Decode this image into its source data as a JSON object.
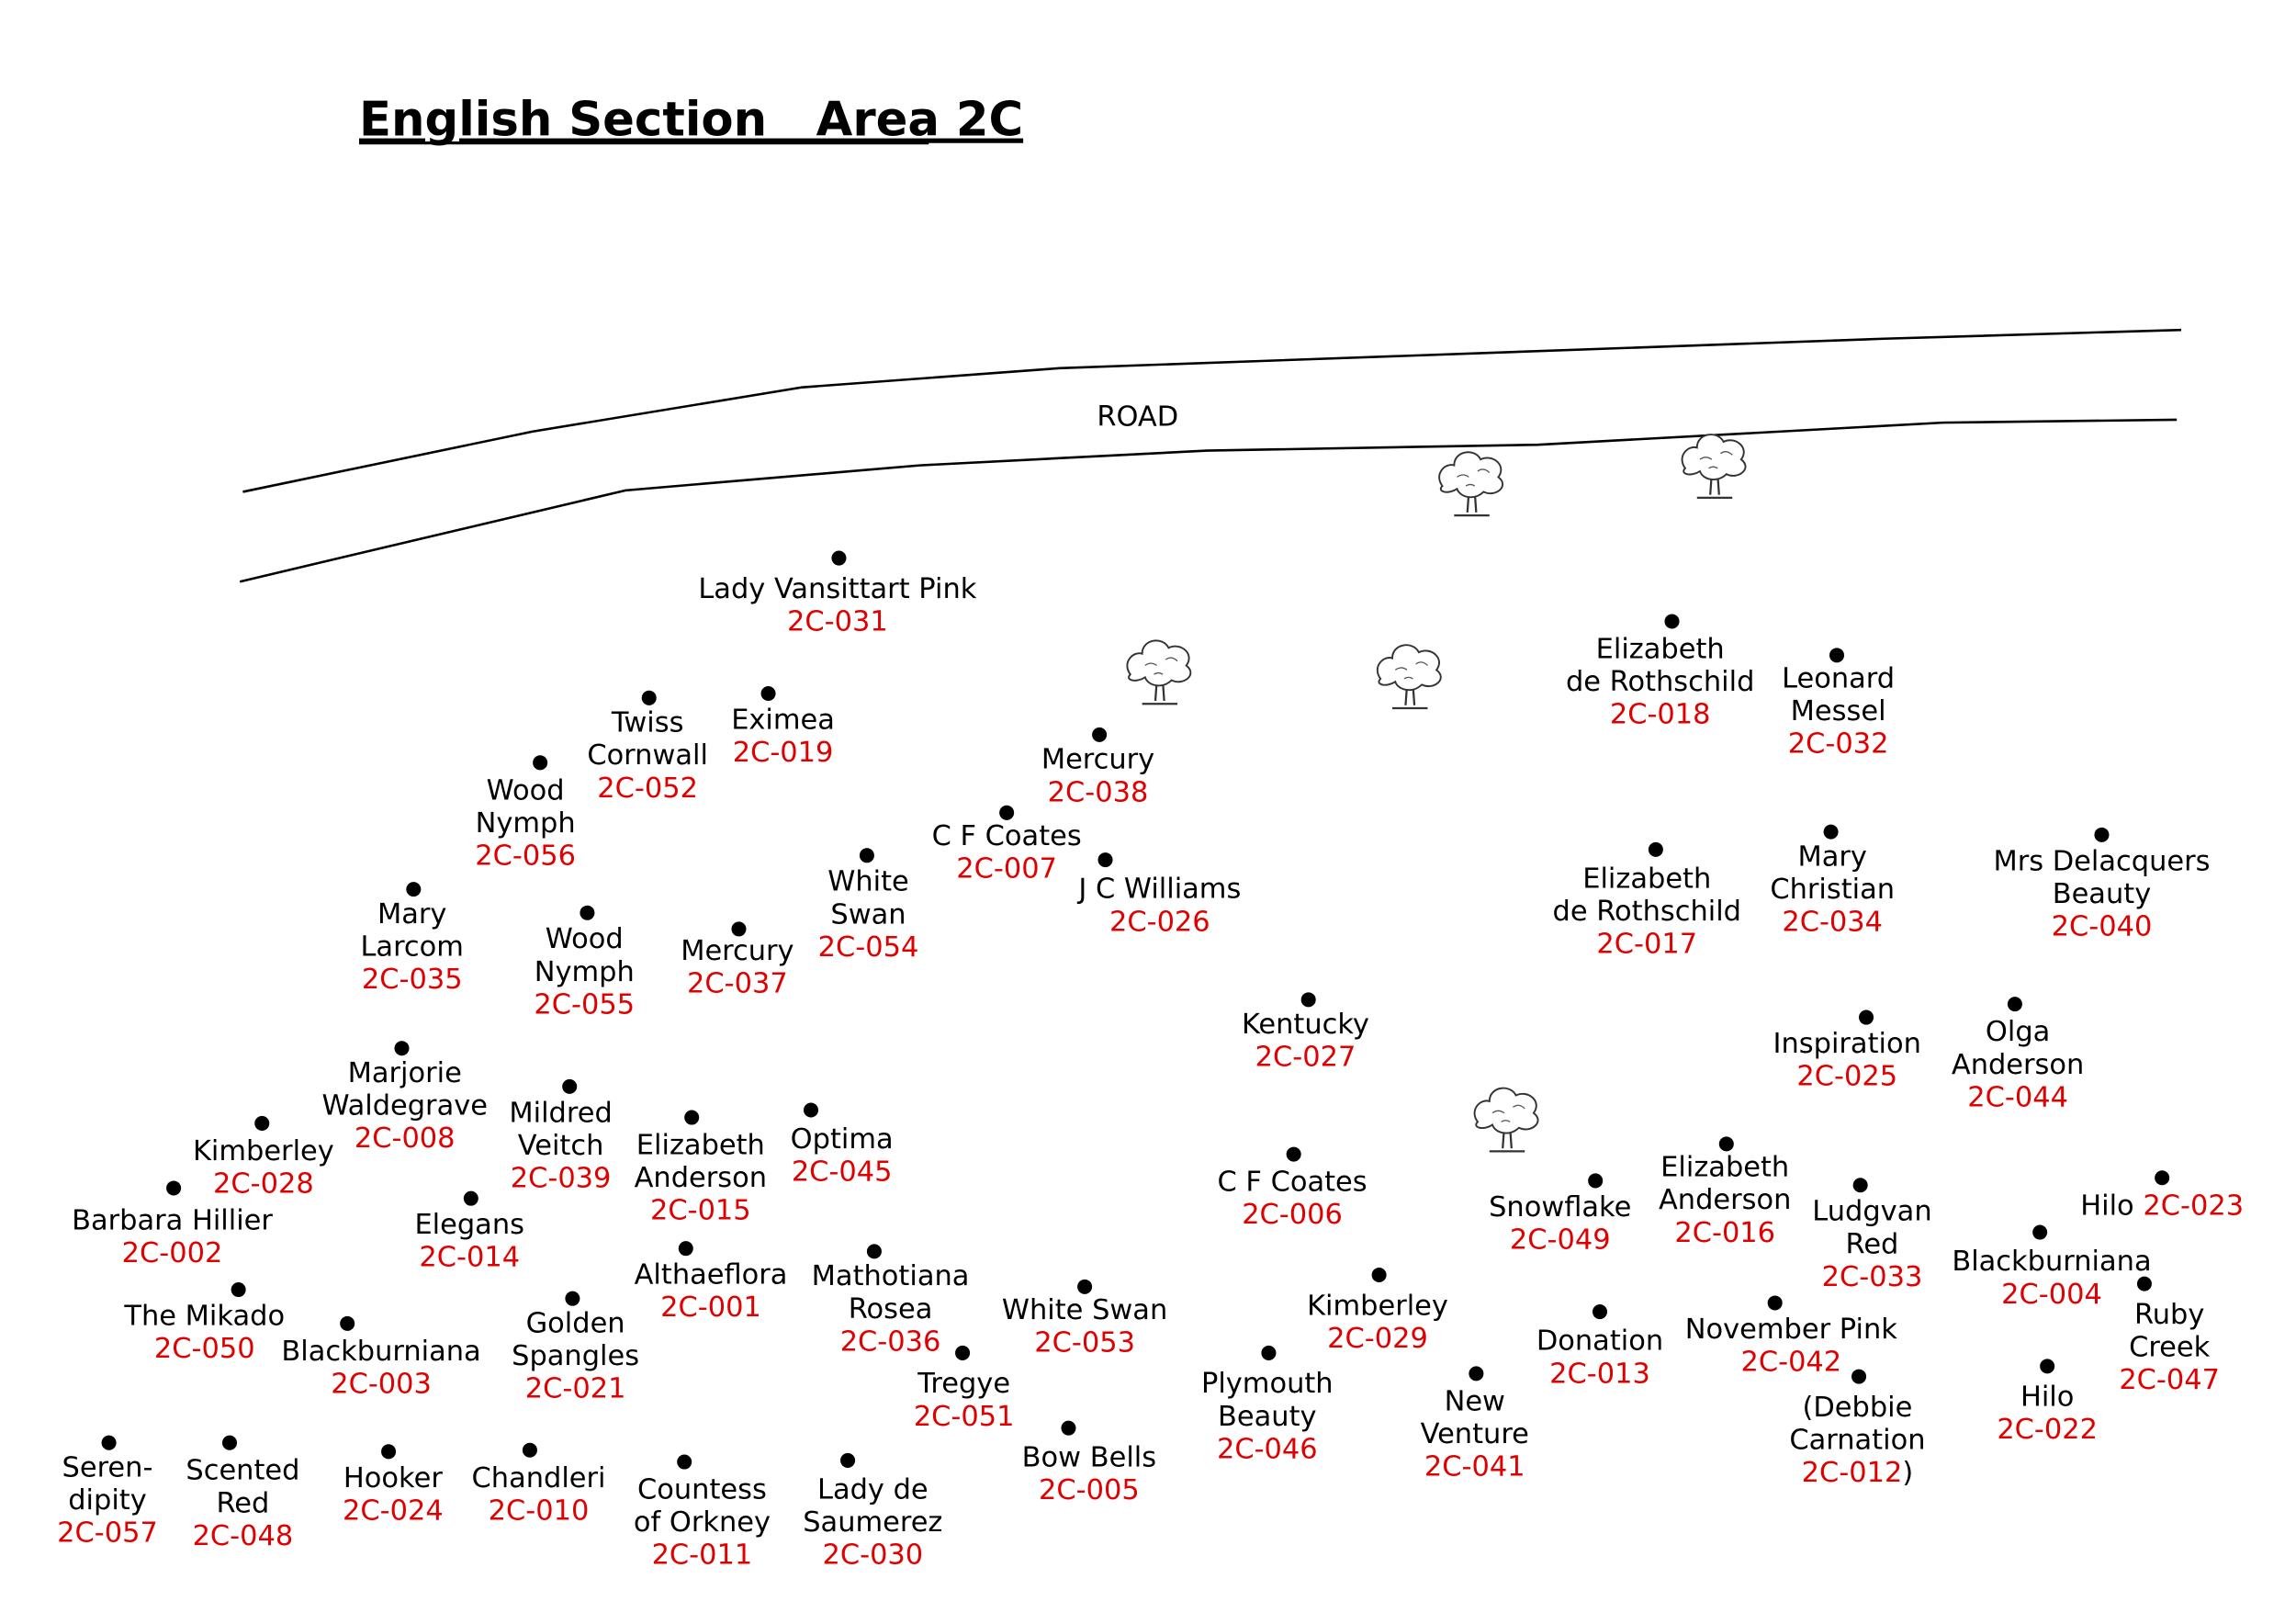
{
  "header": {
    "title": "English Section   Area 2C"
  },
  "map": {
    "road_label": "ROAD",
    "plants": [
      {
        "name": [
          "Lady Vansittart Pink"
        ],
        "code": "2C-031"
      },
      {
        "name": [
          "Twiss",
          "Cornwall"
        ],
        "code": "2C-052"
      },
      {
        "name": [
          "Eximea"
        ],
        "code": "2C-019"
      },
      {
        "name": [
          "Wood",
          "Nymph"
        ],
        "code": "2C-056"
      },
      {
        "name": [
          "Mary",
          "Larcom"
        ],
        "code": "2C-035"
      },
      {
        "name": [
          "Wood",
          "Nymph"
        ],
        "code": "2C-055"
      },
      {
        "name": [
          "Mercury"
        ],
        "code": "2C-037"
      },
      {
        "name": [
          "White",
          "Swan"
        ],
        "code": "2C-054"
      },
      {
        "name": [
          "C F Coates"
        ],
        "code": "2C-007"
      },
      {
        "name": [
          "Mercury"
        ],
        "code": "2C-038"
      },
      {
        "name": [
          "J C Williams"
        ],
        "code": "2C-026"
      },
      {
        "name": [
          "Kentucky"
        ],
        "code": "2C-027"
      },
      {
        "name": [
          "Elizabeth",
          "de Rothschild"
        ],
        "code": "2C-018"
      },
      {
        "name": [
          "Leonard",
          "Messel"
        ],
        "code": "2C-032"
      },
      {
        "name": [
          "Elizabeth",
          "de Rothschild"
        ],
        "code": "2C-017"
      },
      {
        "name": [
          "Mary",
          "Christian"
        ],
        "code": "2C-034"
      },
      {
        "name": [
          "Mrs Delacquers",
          "Beauty"
        ],
        "code": "2C-040"
      },
      {
        "name": [
          "Inspiration"
        ],
        "code": "2C-025"
      },
      {
        "name": [
          "Olga",
          "Anderson"
        ],
        "code": "2C-044"
      },
      {
        "name": [
          "Marjorie",
          "Waldegrave"
        ],
        "code": "2C-008"
      },
      {
        "name": [
          "Mildred",
          "Veitch"
        ],
        "code": "2C-039"
      },
      {
        "name": [
          "Elizabeth",
          "Anderson"
        ],
        "code": "2C-015"
      },
      {
        "name": [
          "Optima"
        ],
        "code": "2C-045"
      },
      {
        "name": [
          "Kimberley"
        ],
        "code": "2C-028"
      },
      {
        "name": [
          "Barbara Hillier"
        ],
        "code": "2C-002"
      },
      {
        "name": [
          "Elegans"
        ],
        "code": "2C-014"
      },
      {
        "name": [
          "Althaeflora"
        ],
        "code": "2C-001"
      },
      {
        "name": [
          "Mathotiana",
          "Rosea"
        ],
        "code": "2C-036"
      },
      {
        "name": [
          "White Swan"
        ],
        "code": "2C-053"
      },
      {
        "name": [
          "C F Coates"
        ],
        "code": "2C-006"
      },
      {
        "name": [
          "Snowflake"
        ],
        "code": "2C-049"
      },
      {
        "name": [
          "Elizabeth",
          "Anderson"
        ],
        "code": "2C-016"
      },
      {
        "name": [
          "Ludgvan",
          "Red"
        ],
        "code": "2C-033"
      },
      {
        "name": [
          "Hilo"
        ],
        "code": "2C-023"
      },
      {
        "name": [
          "Blackburniana"
        ],
        "code": "2C-004"
      },
      {
        "name": [
          "Ruby",
          "Creek"
        ],
        "code": "2C-047"
      },
      {
        "name": [
          "The Mikado"
        ],
        "code": "2C-050"
      },
      {
        "name": [
          "Blackburniana"
        ],
        "code": "2C-003"
      },
      {
        "name": [
          "Golden",
          "Spangles"
        ],
        "code": "2C-021"
      },
      {
        "name": [
          "Tregye"
        ],
        "code": "2C-051"
      },
      {
        "name": [
          "Kimberley"
        ],
        "code": "2C-029"
      },
      {
        "name": [
          "Plymouth",
          "Beauty"
        ],
        "code": "2C-046"
      },
      {
        "name": [
          "New",
          "Venture"
        ],
        "code": "2C-041"
      },
      {
        "name": [
          "Donation"
        ],
        "code": "2C-013"
      },
      {
        "name": [
          "November Pink"
        ],
        "code": "2C-042"
      },
      {
        "name": [
          "(Debbie",
          "Carnation"
        ],
        "code": "2C-012",
        "suffix": ")"
      },
      {
        "name": [
          "Hilo"
        ],
        "code": "2C-022"
      },
      {
        "name": [
          "Bow Bells"
        ],
        "code": "2C-005"
      },
      {
        "name": [
          "Seren-",
          "dipity"
        ],
        "code": "2C-057"
      },
      {
        "name": [
          "Scented",
          "Red"
        ],
        "code": "2C-048"
      },
      {
        "name": [
          "Hooker"
        ],
        "code": "2C-024"
      },
      {
        "name": [
          "Chandleri"
        ],
        "code": "2C-010"
      },
      {
        "name": [
          "Countess",
          "of Orkney"
        ],
        "code": "2C-011"
      },
      {
        "name": [
          "Lady de",
          "Saumerez"
        ],
        "code": "2C-030"
      }
    ]
  }
}
